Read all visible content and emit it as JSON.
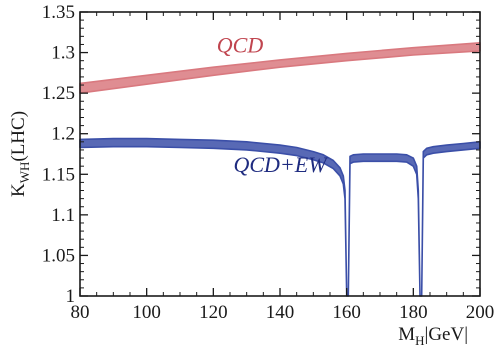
{
  "chart_data": {
    "type": "line",
    "title": "",
    "xlabel": "M_H [GeV]",
    "ylabel": "K_WH (LHC)",
    "xlim": [
      80,
      200
    ],
    "ylim": [
      1.0,
      1.35
    ],
    "x_ticks": [
      80,
      100,
      120,
      140,
      160,
      180,
      200
    ],
    "x_tick_labels": [
      "80",
      "100",
      "120",
      "140",
      "160",
      "180",
      "200"
    ],
    "y_ticks": [
      1.0,
      1.05,
      1.1,
      1.15,
      1.2,
      1.25,
      1.3,
      1.35
    ],
    "y_tick_labels": [
      "1",
      "1.05",
      "1.1",
      "1.15",
      "1.2",
      "1.25",
      "1.3",
      "1.35"
    ],
    "grid": false,
    "legend": "inline labels",
    "series": [
      {
        "name": "QCD",
        "color": "#d9797f",
        "style": "band",
        "x": [
          80,
          100,
          120,
          140,
          160,
          180,
          200
        ],
        "lower": [
          1.25,
          1.261,
          1.272,
          1.282,
          1.29,
          1.297,
          1.302
        ],
        "upper": [
          1.262,
          1.272,
          1.282,
          1.291,
          1.299,
          1.306,
          1.312
        ]
      },
      {
        "name": "QCD+EW",
        "color": "#3b4fa8",
        "style": "band",
        "x": [
          80,
          90,
          100,
          110,
          120,
          130,
          140,
          145,
          150,
          153,
          156,
          158,
          159,
          159.5,
          160,
          160.5,
          161,
          162,
          165,
          170,
          175,
          178,
          180,
          181,
          181.5,
          182,
          182.5,
          183,
          184,
          186,
          190,
          195,
          200
        ],
        "lower": [
          1.183,
          1.184,
          1.184,
          1.183,
          1.182,
          1.18,
          1.176,
          1.173,
          1.168,
          1.164,
          1.157,
          1.148,
          1.138,
          1.12,
          1.0,
          1.0,
          1.163,
          1.165,
          1.166,
          1.166,
          1.166,
          1.165,
          1.16,
          1.15,
          1.12,
          1.0,
          1.0,
          1.17,
          1.174,
          1.176,
          1.178,
          1.18,
          1.182
        ],
        "upper": [
          1.193,
          1.194,
          1.194,
          1.193,
          1.192,
          1.19,
          1.186,
          1.183,
          1.178,
          1.174,
          1.167,
          1.158,
          1.148,
          1.13,
          1.0,
          1.0,
          1.172,
          1.174,
          1.175,
          1.175,
          1.175,
          1.174,
          1.17,
          1.16,
          1.13,
          1.0,
          1.0,
          1.178,
          1.182,
          1.184,
          1.186,
          1.188,
          1.19
        ]
      }
    ],
    "annotations": [
      {
        "text": "QCD",
        "x": 128,
        "y": 1.3
      },
      {
        "text": "QCD+EW",
        "x": 140,
        "y": 1.153
      }
    ]
  }
}
